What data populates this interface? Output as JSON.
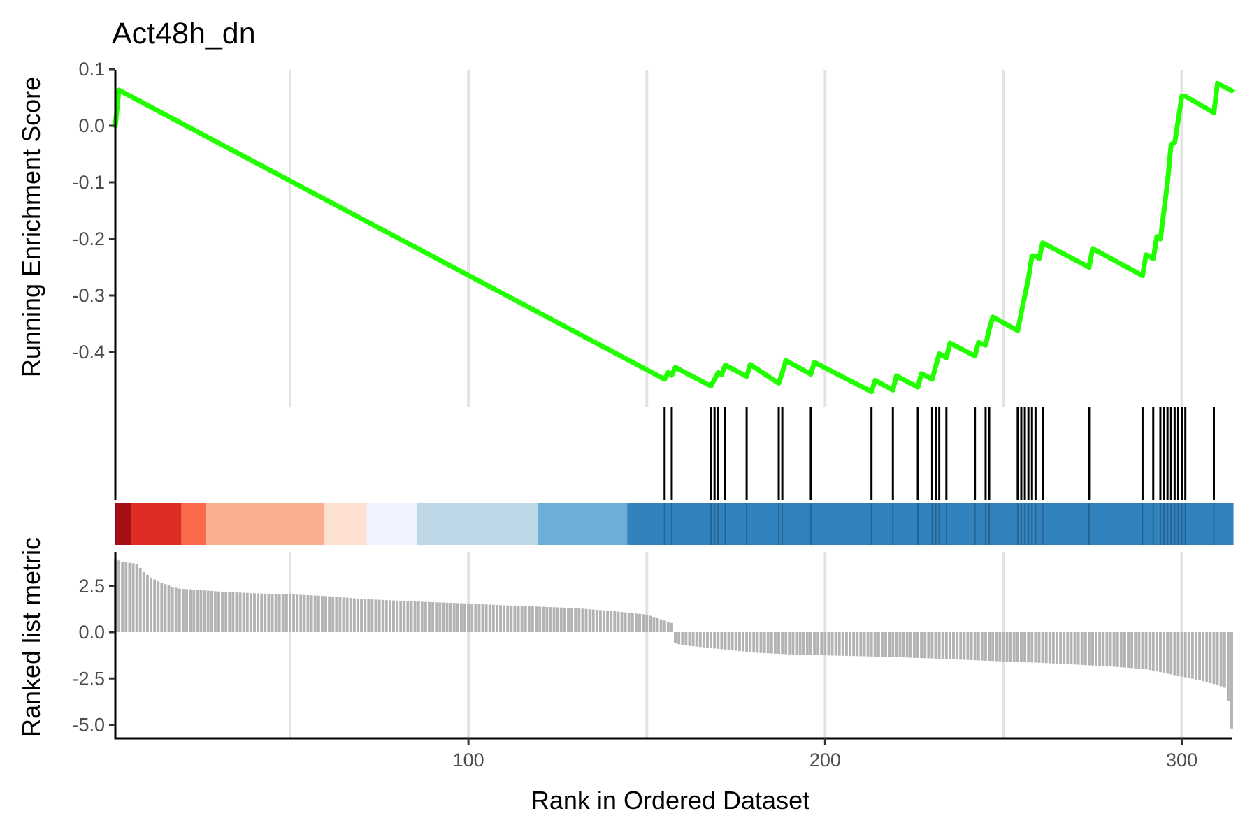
{
  "chart_data": {
    "type": "line",
    "title": "Act48h_dn",
    "xlabel": "Rank in Ordered Dataset",
    "xlim": [
      1,
      314
    ],
    "x_ticks": [
      "100",
      "200",
      "300"
    ],
    "panels": {
      "running_es": {
        "ylabel": "Running Enrichment Score",
        "ylim": [
          -0.5,
          0.1
        ],
        "y_ticks": [
          "0.1",
          "0.0",
          "-0.1",
          "-0.2",
          "-0.3",
          "-0.4"
        ],
        "line_color": "#22ff00",
        "x": [
          1,
          2,
          155,
          156,
          157,
          158,
          168,
          169,
          170,
          171,
          172,
          178,
          179,
          187,
          188,
          189,
          196,
          197,
          213,
          214,
          219,
          220,
          226,
          227,
          230,
          231,
          232,
          234,
          235,
          242,
          243,
          245,
          246,
          247,
          254,
          255,
          256,
          257,
          258,
          259,
          260,
          261,
          274,
          275,
          289,
          290,
          292,
          293,
          294,
          295,
          296,
          297,
          298,
          299,
          300,
          301,
          309,
          310,
          314
        ],
        "y": [
          0.0,
          0.063,
          -0.448,
          -0.436,
          -0.441,
          -0.427,
          -0.46,
          -0.448,
          -0.436,
          -0.44,
          -0.423,
          -0.443,
          -0.422,
          -0.455,
          -0.436,
          -0.415,
          -0.439,
          -0.418,
          -0.47,
          -0.45,
          -0.467,
          -0.442,
          -0.462,
          -0.438,
          -0.448,
          -0.425,
          -0.403,
          -0.41,
          -0.384,
          -0.407,
          -0.383,
          -0.388,
          -0.36,
          -0.338,
          -0.362,
          -0.33,
          -0.3,
          -0.27,
          -0.23,
          -0.23,
          -0.235,
          -0.207,
          -0.25,
          -0.217,
          -0.265,
          -0.228,
          -0.235,
          -0.196,
          -0.2,
          -0.15,
          -0.1,
          -0.033,
          -0.03,
          0.01,
          0.052,
          0.052,
          0.023,
          0.075,
          0.062
        ]
      },
      "hits": {
        "ranks": [
          1,
          155,
          157,
          168,
          169,
          170,
          172,
          178,
          187,
          188,
          196,
          213,
          219,
          226,
          230,
          231,
          232,
          234,
          242,
          245,
          246,
          254,
          255,
          256,
          257,
          258,
          259,
          261,
          274,
          289,
          292,
          294,
          295,
          296,
          297,
          298,
          299,
          300,
          301,
          309
        ]
      },
      "color_band": {
        "segments": [
          {
            "from": 1,
            "to": 5.5,
            "color": "#a50f15"
          },
          {
            "from": 5.5,
            "to": 19.5,
            "color": "#de2d26"
          },
          {
            "from": 19.5,
            "to": 26.5,
            "color": "#fb6a4a"
          },
          {
            "from": 26.5,
            "to": 59.5,
            "color": "#fcae91"
          },
          {
            "from": 59.5,
            "to": 71.5,
            "color": "#fee0d2"
          },
          {
            "from": 71.5,
            "to": 85.5,
            "color": "#eff3ff"
          },
          {
            "from": 85.5,
            "to": 119.5,
            "color": "#bdd7e7"
          },
          {
            "from": 119.5,
            "to": 144.5,
            "color": "#6baed6"
          },
          {
            "from": 144.5,
            "to": 315,
            "color": "#3182bd"
          }
        ]
      },
      "ranked_metric": {
        "ylabel": "Ranked list metric",
        "ylim": [
          -5.5,
          4.0
        ],
        "y_ticks": [
          "2.5",
          "0.0",
          "-2.5",
          "-5.0"
        ],
        "bar_color": "#b3b3b3",
        "anchors": {
          "rank": [
            1,
            3,
            7,
            9,
            11,
            13,
            15,
            17,
            19,
            23,
            30,
            40,
            50,
            60,
            70,
            80,
            90,
            100,
            110,
            120,
            130,
            140,
            150,
            157,
            158,
            160,
            170,
            180,
            190,
            200,
            210,
            220,
            230,
            240,
            250,
            260,
            270,
            280,
            290,
            300,
            305,
            310,
            312,
            313,
            314
          ],
          "value": [
            3.95,
            3.8,
            3.7,
            3.25,
            2.95,
            2.75,
            2.6,
            2.45,
            2.35,
            2.3,
            2.2,
            2.1,
            2.05,
            1.95,
            1.8,
            1.7,
            1.62,
            1.55,
            1.45,
            1.38,
            1.3,
            1.15,
            0.95,
            0.5,
            -0.6,
            -0.7,
            -0.9,
            -1.1,
            -1.2,
            -1.25,
            -1.3,
            -1.35,
            -1.42,
            -1.5,
            -1.58,
            -1.65,
            -1.75,
            -1.85,
            -2.0,
            -2.4,
            -2.6,
            -2.85,
            -3.0,
            -3.7,
            -5.2
          ]
        }
      }
    }
  }
}
